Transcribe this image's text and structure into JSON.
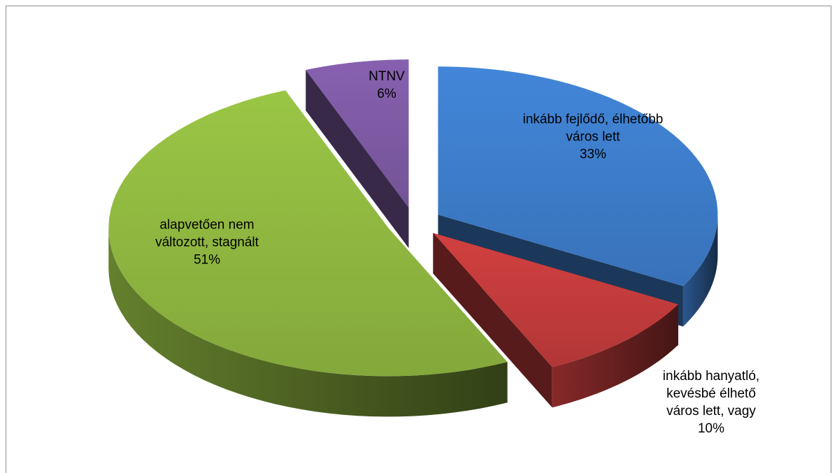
{
  "chart_data": {
    "type": "pie",
    "categories": [
      "inkább fejlődő, élhetőbb város lett",
      "inkább hanyatló, kevésbé élhető város lett, vagy",
      "alapvetően nem változott, stagnált",
      "NTNV"
    ],
    "values": [
      33,
      10,
      51,
      6
    ],
    "value_labels": [
      "33%",
      "10%",
      "51%",
      "6%"
    ],
    "colors": [
      "#3d7cc9",
      "#c23b3b",
      "#8fb740",
      "#7d5aa3"
    ]
  }
}
